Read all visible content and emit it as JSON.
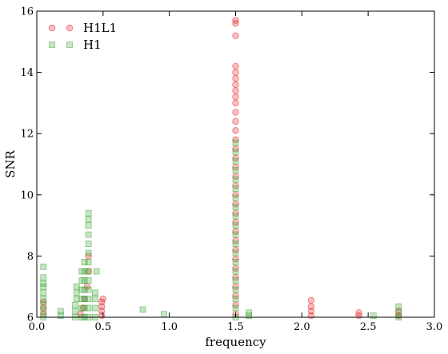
{
  "chart_data": {
    "type": "scatter",
    "xlabel": "frequency",
    "ylabel": "SNR",
    "xlim": [
      0.0,
      3.0
    ],
    "ylim": [
      6,
      16
    ],
    "xticks": [
      "0.0",
      "0.5",
      "1.0",
      "1.5",
      "2.0",
      "2.5",
      "3.0"
    ],
    "yticks": [
      "6",
      "8",
      "10",
      "12",
      "14",
      "16"
    ],
    "grid": false,
    "legend_position": "top-left",
    "series": [
      {
        "name": "H1L1",
        "marker": "circle",
        "color": "#e31a1c",
        "points": [
          [
            0.05,
            6.1
          ],
          [
            0.05,
            6.3
          ],
          [
            0.05,
            6.5
          ],
          [
            0.33,
            6.1
          ],
          [
            0.35,
            6.3
          ],
          [
            0.36,
            6.6
          ],
          [
            0.38,
            7.0
          ],
          [
            0.39,
            7.5
          ],
          [
            0.39,
            8.0
          ],
          [
            0.49,
            6.05
          ],
          [
            0.49,
            6.2
          ],
          [
            0.49,
            6.35
          ],
          [
            0.49,
            6.5
          ],
          [
            0.5,
            6.6
          ],
          [
            1.5,
            6.1
          ],
          [
            1.5,
            6.4
          ],
          [
            1.5,
            6.7
          ],
          [
            1.5,
            7.0
          ],
          [
            1.5,
            7.3
          ],
          [
            1.5,
            7.6
          ],
          [
            1.5,
            7.9
          ],
          [
            1.5,
            8.2
          ],
          [
            1.5,
            8.5
          ],
          [
            1.5,
            8.8
          ],
          [
            1.5,
            9.1
          ],
          [
            1.5,
            9.4
          ],
          [
            1.5,
            9.7
          ],
          [
            1.5,
            10.0
          ],
          [
            1.5,
            10.3
          ],
          [
            1.5,
            10.6
          ],
          [
            1.5,
            10.9
          ],
          [
            1.5,
            11.2
          ],
          [
            1.5,
            11.5
          ],
          [
            1.5,
            11.8
          ],
          [
            1.5,
            12.1
          ],
          [
            1.5,
            12.4
          ],
          [
            1.5,
            12.7
          ],
          [
            1.5,
            13.0
          ],
          [
            1.5,
            13.2
          ],
          [
            1.5,
            13.4
          ],
          [
            1.5,
            13.6
          ],
          [
            1.5,
            13.8
          ],
          [
            1.5,
            14.0
          ],
          [
            1.5,
            14.2
          ],
          [
            1.5,
            15.2
          ],
          [
            1.5,
            15.6
          ],
          [
            1.5,
            15.7
          ],
          [
            2.07,
            6.05
          ],
          [
            2.07,
            6.2
          ],
          [
            2.07,
            6.35
          ],
          [
            2.07,
            6.55
          ],
          [
            2.43,
            6.05
          ],
          [
            2.43,
            6.15
          ],
          [
            2.73,
            6.05
          ],
          [
            2.73,
            6.2
          ]
        ]
      },
      {
        "name": "H1",
        "marker": "square",
        "color": "#33a02c",
        "points": [
          [
            0.05,
            6.0
          ],
          [
            0.05,
            6.2
          ],
          [
            0.05,
            6.4
          ],
          [
            0.05,
            6.6
          ],
          [
            0.05,
            6.8
          ],
          [
            0.05,
            7.0
          ],
          [
            0.05,
            7.1
          ],
          [
            0.05,
            7.3
          ],
          [
            0.05,
            7.65
          ],
          [
            0.18,
            6.05
          ],
          [
            0.18,
            6.2
          ],
          [
            0.29,
            6.0
          ],
          [
            0.29,
            6.2
          ],
          [
            0.29,
            6.4
          ],
          [
            0.3,
            6.6
          ],
          [
            0.3,
            6.8
          ],
          [
            0.3,
            7.0
          ],
          [
            0.34,
            6.0
          ],
          [
            0.34,
            6.3
          ],
          [
            0.34,
            6.6
          ],
          [
            0.34,
            6.9
          ],
          [
            0.34,
            7.2
          ],
          [
            0.34,
            7.5
          ],
          [
            0.36,
            6.0
          ],
          [
            0.36,
            6.3
          ],
          [
            0.36,
            6.6
          ],
          [
            0.36,
            6.9
          ],
          [
            0.36,
            7.2
          ],
          [
            0.36,
            7.5
          ],
          [
            0.36,
            7.8
          ],
          [
            0.39,
            6.0
          ],
          [
            0.39,
            6.3
          ],
          [
            0.39,
            6.6
          ],
          [
            0.39,
            6.9
          ],
          [
            0.39,
            7.2
          ],
          [
            0.39,
            7.5
          ],
          [
            0.39,
            7.8
          ],
          [
            0.39,
            8.1
          ],
          [
            0.39,
            8.4
          ],
          [
            0.39,
            8.7
          ],
          [
            0.39,
            9.0
          ],
          [
            0.39,
            9.2
          ],
          [
            0.39,
            9.4
          ],
          [
            0.44,
            6.0
          ],
          [
            0.44,
            6.3
          ],
          [
            0.44,
            6.6
          ],
          [
            0.44,
            6.8
          ],
          [
            0.45,
            7.5
          ],
          [
            0.8,
            6.25
          ],
          [
            0.96,
            6.1
          ],
          [
            1.5,
            6.0
          ],
          [
            1.5,
            6.3
          ],
          [
            1.5,
            6.6
          ],
          [
            1.5,
            6.9
          ],
          [
            1.5,
            7.2
          ],
          [
            1.5,
            7.5
          ],
          [
            1.5,
            7.8
          ],
          [
            1.5,
            8.1
          ],
          [
            1.5,
            8.4
          ],
          [
            1.5,
            8.7
          ],
          [
            1.5,
            9.0
          ],
          [
            1.5,
            9.3
          ],
          [
            1.5,
            9.6
          ],
          [
            1.5,
            9.9
          ],
          [
            1.5,
            10.2
          ],
          [
            1.5,
            10.5
          ],
          [
            1.5,
            10.8
          ],
          [
            1.5,
            11.1
          ],
          [
            1.5,
            11.4
          ],
          [
            1.5,
            11.7
          ],
          [
            1.6,
            6.05
          ],
          [
            1.6,
            6.15
          ],
          [
            2.54,
            6.05
          ],
          [
            2.73,
            6.0
          ],
          [
            2.73,
            6.15
          ],
          [
            2.73,
            6.35
          ]
        ]
      }
    ]
  }
}
